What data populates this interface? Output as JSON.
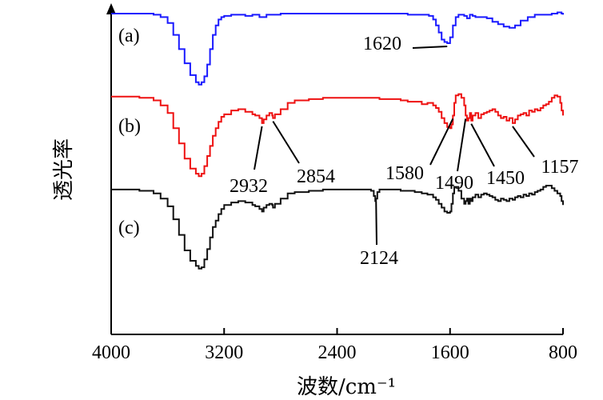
{
  "chart_data": {
    "type": "line",
    "xlabel": "波数/cm⁻¹",
    "ylabel": "透光率",
    "xlim": [
      4000,
      800
    ],
    "x_reversed": true,
    "x_ticks": [
      4000,
      3200,
      2400,
      1600,
      800
    ],
    "y_ticks_shown": false,
    "grid": false,
    "series": [
      {
        "name": "(a)",
        "color": "#1a1aff",
        "x": [
          4000,
          3900,
          3800,
          3700,
          3650,
          3600,
          3560,
          3520,
          3480,
          3440,
          3400,
          3380,
          3360,
          3340,
          3320,
          3300,
          3280,
          3260,
          3240,
          3220,
          3200,
          3150,
          3100,
          3050,
          3000,
          2950,
          2900,
          2800,
          2700,
          2600,
          2500,
          2400,
          2300,
          2200,
          2100,
          2000,
          1900,
          1800,
          1750,
          1720,
          1700,
          1680,
          1660,
          1640,
          1620,
          1600,
          1580,
          1560,
          1540,
          1500,
          1480,
          1460,
          1440,
          1420,
          1380,
          1340,
          1300,
          1260,
          1220,
          1180,
          1140,
          1100,
          1050,
          1000,
          960,
          920,
          880,
          840,
          810,
          800
        ],
        "y": [
          0.98,
          0.98,
          0.98,
          0.97,
          0.95,
          0.9,
          0.8,
          0.68,
          0.56,
          0.46,
          0.4,
          0.38,
          0.4,
          0.45,
          0.55,
          0.68,
          0.8,
          0.88,
          0.93,
          0.95,
          0.96,
          0.97,
          0.97,
          0.96,
          0.97,
          0.95,
          0.97,
          0.98,
          0.98,
          0.98,
          0.98,
          0.98,
          0.98,
          0.98,
          0.98,
          0.98,
          0.97,
          0.97,
          0.96,
          0.93,
          0.88,
          0.82,
          0.76,
          0.74,
          0.73,
          0.78,
          0.88,
          0.95,
          0.97,
          0.96,
          0.94,
          0.97,
          0.96,
          0.95,
          0.95,
          0.94,
          0.91,
          0.89,
          0.87,
          0.86,
          0.88,
          0.92,
          0.95,
          0.97,
          0.97,
          0.97,
          0.98,
          0.99,
          0.98,
          0.97
        ]
      },
      {
        "name": "(b)",
        "color": "#ee1111",
        "x": [
          4000,
          3900,
          3800,
          3700,
          3650,
          3600,
          3560,
          3520,
          3480,
          3440,
          3400,
          3380,
          3360,
          3340,
          3320,
          3300,
          3280,
          3260,
          3240,
          3220,
          3200,
          3150,
          3100,
          3050,
          3000,
          2980,
          2950,
          2932,
          2920,
          2900,
          2880,
          2860,
          2854,
          2840,
          2800,
          2750,
          2700,
          2600,
          2500,
          2400,
          2300,
          2200,
          2100,
          2000,
          1950,
          1900,
          1850,
          1800,
          1760,
          1720,
          1700,
          1680,
          1660,
          1640,
          1620,
          1600,
          1590,
          1580,
          1570,
          1560,
          1540,
          1520,
          1500,
          1490,
          1480,
          1470,
          1460,
          1450,
          1440,
          1420,
          1400,
          1380,
          1360,
          1340,
          1320,
          1300,
          1280,
          1260,
          1240,
          1220,
          1200,
          1180,
          1157,
          1140,
          1120,
          1100,
          1080,
          1060,
          1040,
          1020,
          1000,
          980,
          960,
          940,
          920,
          900,
          880,
          860,
          840,
          820,
          810,
          800
        ],
        "y": [
          0.97,
          0.97,
          0.96,
          0.94,
          0.9,
          0.84,
          0.72,
          0.6,
          0.48,
          0.4,
          0.36,
          0.34,
          0.36,
          0.42,
          0.5,
          0.58,
          0.66,
          0.72,
          0.77,
          0.81,
          0.83,
          0.86,
          0.87,
          0.85,
          0.83,
          0.82,
          0.8,
          0.76,
          0.79,
          0.82,
          0.84,
          0.82,
          0.8,
          0.83,
          0.87,
          0.92,
          0.94,
          0.95,
          0.96,
          0.96,
          0.96,
          0.96,
          0.95,
          0.95,
          0.94,
          0.93,
          0.93,
          0.91,
          0.92,
          0.9,
          0.88,
          0.85,
          0.8,
          0.76,
          0.73,
          0.72,
          0.75,
          0.82,
          0.92,
          0.98,
          0.99,
          0.96,
          0.9,
          0.82,
          0.78,
          0.8,
          0.84,
          0.78,
          0.82,
          0.84,
          0.8,
          0.83,
          0.84,
          0.85,
          0.86,
          0.87,
          0.85,
          0.82,
          0.8,
          0.81,
          0.78,
          0.8,
          0.76,
          0.79,
          0.82,
          0.83,
          0.84,
          0.82,
          0.86,
          0.85,
          0.87,
          0.86,
          0.88,
          0.9,
          0.91,
          0.93,
          0.96,
          0.98,
          0.97,
          0.92,
          0.86,
          0.82
        ]
      },
      {
        "name": "(c)",
        "color": "#111111",
        "x": [
          4000,
          3900,
          3800,
          3700,
          3650,
          3600,
          3560,
          3520,
          3480,
          3440,
          3400,
          3380,
          3360,
          3340,
          3320,
          3300,
          3280,
          3260,
          3240,
          3220,
          3200,
          3150,
          3100,
          3050,
          3000,
          2980,
          2950,
          2932,
          2920,
          2900,
          2880,
          2860,
          2854,
          2840,
          2800,
          2750,
          2700,
          2600,
          2500,
          2400,
          2300,
          2200,
          2160,
          2140,
          2130,
          2124,
          2115,
          2100,
          2050,
          2000,
          1950,
          1900,
          1850,
          1800,
          1760,
          1720,
          1700,
          1680,
          1660,
          1640,
          1620,
          1600,
          1590,
          1580,
          1570,
          1560,
          1540,
          1520,
          1500,
          1490,
          1480,
          1470,
          1460,
          1450,
          1440,
          1420,
          1400,
          1380,
          1360,
          1340,
          1320,
          1300,
          1280,
          1260,
          1240,
          1220,
          1200,
          1180,
          1157,
          1140,
          1120,
          1100,
          1080,
          1060,
          1040,
          1020,
          1000,
          980,
          960,
          940,
          920,
          900,
          880,
          860,
          840,
          820,
          810,
          800
        ],
        "y": [
          0.97,
          0.97,
          0.96,
          0.94,
          0.9,
          0.84,
          0.74,
          0.62,
          0.5,
          0.42,
          0.38,
          0.36,
          0.37,
          0.43,
          0.51,
          0.6,
          0.68,
          0.73,
          0.78,
          0.82,
          0.85,
          0.87,
          0.88,
          0.87,
          0.85,
          0.84,
          0.82,
          0.8,
          0.83,
          0.85,
          0.86,
          0.85,
          0.83,
          0.86,
          0.9,
          0.94,
          0.95,
          0.96,
          0.97,
          0.97,
          0.97,
          0.97,
          0.96,
          0.92,
          0.88,
          0.9,
          0.95,
          0.97,
          0.97,
          0.97,
          0.96,
          0.96,
          0.95,
          0.94,
          0.93,
          0.91,
          0.89,
          0.86,
          0.83,
          0.8,
          0.79,
          0.8,
          0.86,
          0.94,
          0.99,
          0.99,
          0.96,
          0.9,
          0.86,
          0.88,
          0.9,
          0.86,
          0.9,
          0.88,
          0.91,
          0.93,
          0.91,
          0.93,
          0.94,
          0.93,
          0.92,
          0.91,
          0.89,
          0.88,
          0.9,
          0.89,
          0.88,
          0.9,
          0.89,
          0.91,
          0.92,
          0.91,
          0.93,
          0.92,
          0.94,
          0.93,
          0.95,
          0.96,
          0.97,
          0.99,
          1.0,
          1.0,
          0.98,
          0.96,
          0.94,
          0.92,
          0.88,
          0.85
        ]
      }
    ],
    "annotations": [
      {
        "series": "(a)",
        "text": "1620",
        "x": 1620
      },
      {
        "series": "(b)",
        "text": "2932",
        "x": 2932
      },
      {
        "series": "(b)",
        "text": "2854",
        "x": 2854
      },
      {
        "series": "(b)",
        "text": "1580",
        "x": 1580
      },
      {
        "series": "(b)",
        "text": "1490",
        "x": 1490
      },
      {
        "series": "(b)",
        "text": "1450",
        "x": 1450
      },
      {
        "series": "(b)",
        "text": "1157",
        "x": 1157
      },
      {
        "series": "(c)",
        "text": "2124",
        "x": 2124
      }
    ]
  }
}
